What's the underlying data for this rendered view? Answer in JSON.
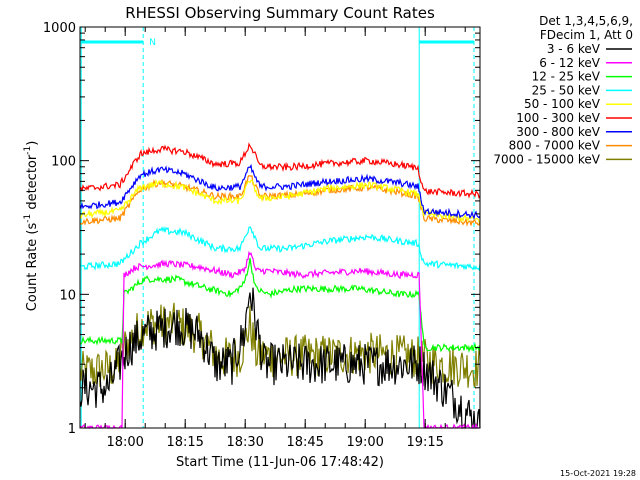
{
  "chart_data": {
    "type": "line",
    "title": "RHESSI Observing Summary Count Rates",
    "xlabel": "Start Time (11-Jun-06 17:48:42)",
    "ylabel_main": "Count Rate (s",
    "ylabel_sup1": "-1",
    "ylabel_mid": " detector",
    "ylabel_sup2": "-1",
    "ylabel_end": ")",
    "yscale": "log",
    "ylim": [
      1,
      1000
    ],
    "xlim": [
      0,
      100
    ],
    "x_ticks": [
      {
        "t": 11.3,
        "label": "18:00"
      },
      {
        "t": 26.3,
        "label": "18:15"
      },
      {
        "t": 41.3,
        "label": "18:30"
      },
      {
        "t": 56.3,
        "label": "18:45"
      },
      {
        "t": 71.3,
        "label": "19:00"
      },
      {
        "t": 86.3,
        "label": "19:15"
      }
    ],
    "y_ticks": [
      {
        "v": 1,
        "label": "1"
      },
      {
        "v": 10,
        "label": "10"
      },
      {
        "v": 100,
        "label": "100"
      },
      {
        "v": 1000,
        "label": "1000"
      }
    ],
    "legend_header": [
      "Det 1,3,4,5,6,9,",
      "FDecim 1, Att 0"
    ],
    "attenuator_flag": "N",
    "gap_markers": {
      "solid": [
        0.3,
        84.8
      ],
      "dashed": [
        15.8,
        98.5
      ]
    },
    "flag_bars": [
      [
        0.3,
        15.8
      ],
      [
        84.8,
        98.5
      ]
    ],
    "series": [
      {
        "name": "3 - 6 keV",
        "color": "#000000",
        "x": [
          0,
          7,
          12,
          16,
          24,
          30,
          34,
          38,
          41,
          42.5,
          44,
          46,
          52,
          65,
          78,
          85,
          95,
          100
        ],
        "values": [
          2,
          2,
          4,
          5,
          6,
          5,
          3,
          3,
          5,
          11,
          6,
          3,
          3,
          3,
          3,
          3,
          1.5,
          1
        ]
      },
      {
        "name": "6 - 12 keV",
        "color": "#ff00ff",
        "x": [
          0,
          10.5,
          11,
          14,
          22,
          30,
          38,
          41,
          42.5,
          44,
          47,
          55,
          70,
          80,
          84.8,
          86,
          100
        ],
        "values": [
          1,
          1,
          14,
          16,
          17,
          16,
          14,
          15,
          21,
          15,
          15,
          14,
          15,
          14,
          14,
          1,
          1
        ]
      },
      {
        "name": "12 - 25 keV",
        "color": "#00ff00",
        "x": [
          0,
          10.5,
          11,
          16,
          24,
          32,
          38,
          41,
          42.5,
          44,
          47,
          54,
          70,
          80,
          84.8,
          86,
          100
        ],
        "values": [
          4.5,
          4.5,
          10,
          13,
          13,
          11,
          10,
          12,
          18,
          11,
          10,
          11,
          11,
          10,
          10,
          4,
          4
        ]
      },
      {
        "name": "25 - 50 keV",
        "color": "#00ffff",
        "x": [
          0,
          10,
          15,
          20,
          26,
          34,
          40,
          42.5,
          45,
          52,
          62,
          72,
          80,
          84.5,
          86,
          100
        ],
        "values": [
          16,
          17,
          24,
          30,
          29,
          22,
          22,
          33,
          22,
          22,
          25,
          27,
          25,
          24,
          17,
          16
        ]
      },
      {
        "name": "50 - 100 keV",
        "color": "#ffff00",
        "x": [
          0,
          10,
          15,
          20,
          26,
          34,
          40,
          42.5,
          45,
          52,
          62,
          72,
          80,
          84.5,
          86,
          100
        ],
        "values": [
          39,
          42,
          63,
          68,
          63,
          50,
          50,
          72,
          52,
          54,
          62,
          66,
          60,
          56,
          40,
          36
        ]
      },
      {
        "name": "100 - 300 keV",
        "color": "#ff0000",
        "x": [
          0,
          10,
          15,
          20,
          26,
          34,
          40,
          42.5,
          45,
          52,
          62,
          72,
          80,
          84.5,
          86,
          100
        ],
        "values": [
          61,
          66,
          112,
          122,
          117,
          94,
          96,
          133,
          91,
          89,
          95,
          100,
          93,
          88,
          59,
          56
        ]
      },
      {
        "name": "300 - 800 keV",
        "color": "#0000ff",
        "x": [
          0,
          10,
          15,
          20,
          26,
          34,
          40,
          42.5,
          45,
          52,
          62,
          72,
          80,
          84.5,
          86,
          100
        ],
        "values": [
          45,
          49,
          78,
          86,
          80,
          62,
          64,
          90,
          64,
          64,
          70,
          73,
          68,
          64,
          42,
          39
        ]
      },
      {
        "name": "800 - 7000 keV",
        "color": "#ff8c00",
        "x": [
          0,
          10,
          15,
          20,
          26,
          34,
          40,
          42.5,
          45,
          52,
          62,
          72,
          80,
          84.5,
          86,
          100
        ],
        "values": [
          35,
          37,
          61,
          69,
          64,
          54,
          54,
          78,
          54,
          55,
          60,
          63,
          58,
          54,
          37,
          34
        ]
      },
      {
        "name": "7000 - 15000 keV",
        "color": "#808000",
        "x": [
          0,
          9,
          11,
          16,
          24,
          30,
          35,
          40,
          42.5,
          44,
          48,
          60,
          72,
          84,
          90,
          100
        ],
        "values": [
          2.6,
          2.8,
          4,
          6,
          6,
          5,
          3.3,
          3.5,
          6,
          3.6,
          3.4,
          3.5,
          3.6,
          3.4,
          3,
          2.8
        ]
      }
    ]
  },
  "footer": {
    "date": "15-Oct-2021 19:28"
  }
}
